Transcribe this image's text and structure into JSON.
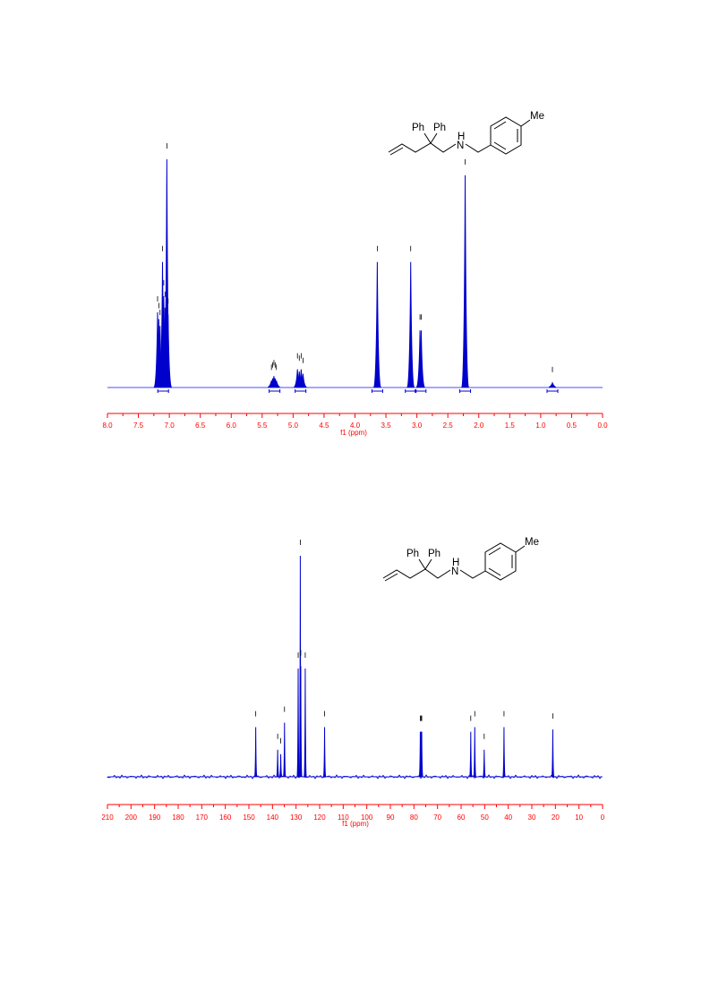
{
  "colors": {
    "spectrum": "#0000cc",
    "axis": "#ff0000",
    "baseline": "#4d4dff",
    "annotation": "#000000"
  },
  "structure": {
    "ph1": "Ph",
    "ph2": "Ph",
    "nh_h": "H",
    "nh_n": "N",
    "me": "Me"
  },
  "chart_data": [
    {
      "type": "line",
      "spectrum": "1H NMR",
      "xlabel": "f1 (ppm)",
      "xlim": [
        8.0,
        0.0
      ],
      "x_reversed": true,
      "ticks": [
        "8.0",
        "7.5",
        "7.0",
        "6.5",
        "6.0",
        "5.5",
        "5.0",
        "4.5",
        "4.0",
        "3.5",
        "3.0",
        "2.5",
        "2.0",
        "1.5",
        "1.0",
        "0.5",
        "0.0"
      ],
      "peaks": [
        {
          "x": 7.19,
          "h": 0.33
        },
        {
          "x": 7.17,
          "h": 0.3
        },
        {
          "x": 7.15,
          "h": 0.27
        },
        {
          "x": 7.11,
          "h": 0.55
        },
        {
          "x": 7.09,
          "h": 0.4
        },
        {
          "x": 7.07,
          "h": 0.35
        },
        {
          "x": 7.04,
          "h": 1.0
        },
        {
          "x": 7.02,
          "h": 0.32
        },
        {
          "x": 5.35,
          "h": 0.03
        },
        {
          "x": 5.33,
          "h": 0.04
        },
        {
          "x": 5.31,
          "h": 0.05
        },
        {
          "x": 5.29,
          "h": 0.04
        },
        {
          "x": 5.27,
          "h": 0.03
        },
        {
          "x": 4.93,
          "h": 0.08
        },
        {
          "x": 4.9,
          "h": 0.07
        },
        {
          "x": 4.87,
          "h": 0.08
        },
        {
          "x": 4.84,
          "h": 0.06
        },
        {
          "x": 3.64,
          "h": 0.55
        },
        {
          "x": 3.1,
          "h": 0.55
        },
        {
          "x": 2.95,
          "h": 0.25
        },
        {
          "x": 2.93,
          "h": 0.25
        },
        {
          "x": 2.22,
          "h": 0.93
        },
        {
          "x": 0.81,
          "h": 0.02
        }
      ],
      "integral_markers": [
        7.1,
        5.3,
        4.88,
        3.64,
        3.1,
        2.94,
        2.22,
        0.81
      ]
    },
    {
      "type": "line",
      "spectrum": "13C NMR",
      "xlabel": "f1 (ppm)",
      "xlim": [
        210,
        0
      ],
      "x_reversed": true,
      "ticks": [
        "210",
        "200",
        "190",
        "180",
        "170",
        "160",
        "150",
        "140",
        "130",
        "120",
        "110",
        "100",
        "90",
        "80",
        "70",
        "60",
        "50",
        "40",
        "30",
        "20",
        "10",
        "0"
      ],
      "peaks": [
        {
          "x": 147.1,
          "h": 0.22
        },
        {
          "x": 137.8,
          "h": 0.12
        },
        {
          "x": 136.5,
          "h": 0.1
        },
        {
          "x": 134.9,
          "h": 0.24
        },
        {
          "x": 129.1,
          "h": 0.48
        },
        {
          "x": 128.2,
          "h": 0.98
        },
        {
          "x": 128.0,
          "h": 0.49
        },
        {
          "x": 126.1,
          "h": 0.48
        },
        {
          "x": 117.9,
          "h": 0.22
        },
        {
          "x": 77.3,
          "h": 0.2
        },
        {
          "x": 77.0,
          "h": 0.2
        },
        {
          "x": 76.7,
          "h": 0.2
        },
        {
          "x": 55.9,
          "h": 0.2
        },
        {
          "x": 54.2,
          "h": 0.22
        },
        {
          "x": 50.2,
          "h": 0.12
        },
        {
          "x": 41.8,
          "h": 0.22
        },
        {
          "x": 21.1,
          "h": 0.21
        }
      ]
    }
  ]
}
